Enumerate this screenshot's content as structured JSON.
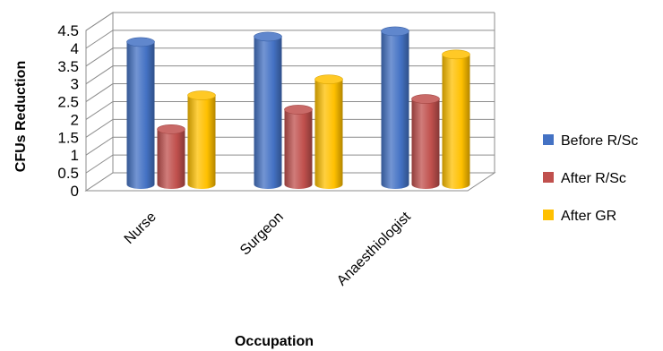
{
  "chart_data": {
    "type": "bar",
    "style": "3d-cylinder",
    "title": "",
    "xlabel": "Occupation",
    "ylabel": "CFUs Reduction",
    "ylim": [
      0,
      4.5
    ],
    "yticks": [
      "0",
      "0.5",
      "1",
      "1.5",
      "2",
      "2.5",
      "3",
      "3.5",
      "4",
      "4.5"
    ],
    "categories": [
      "Nurse",
      "Surgeon",
      "Anaesthiologist"
    ],
    "series": [
      {
        "name": "Before R/Sc",
        "color": "#4472C4",
        "values": [
          4.0,
          4.15,
          4.3
        ]
      },
      {
        "name": "After R/Sc",
        "color": "#C0504D",
        "values": [
          1.55,
          2.1,
          2.4
        ]
      },
      {
        "name": "After GR",
        "color": "#FFC000",
        "values": [
          2.5,
          2.95,
          3.65
        ]
      }
    ],
    "grid": true,
    "legend_position": "right"
  }
}
